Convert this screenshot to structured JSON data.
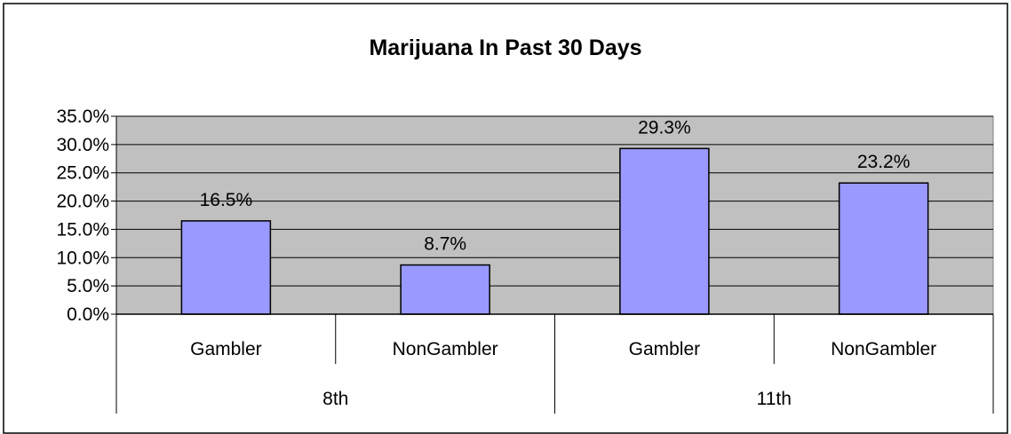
{
  "chart_data": {
    "type": "bar",
    "title": "Marijuana In Past 30 Days",
    "xlabel": "",
    "ylabel": "",
    "ylim": [
      0,
      35
    ],
    "y_ticks": [
      "0.0%",
      "5.0%",
      "10.0%",
      "15.0%",
      "20.0%",
      "25.0%",
      "30.0%",
      "35.0%"
    ],
    "y_tick_values": [
      0,
      5,
      10,
      15,
      20,
      25,
      30,
      35
    ],
    "grid": true,
    "legend": "none",
    "categories": [
      "Gambler",
      "NonGambler",
      "Gambler",
      "NonGambler"
    ],
    "groups": [
      {
        "label": "8th",
        "categories": [
          "Gambler",
          "NonGambler"
        ]
      },
      {
        "label": "11th",
        "categories": [
          "Gambler",
          "NonGambler"
        ]
      }
    ],
    "values": [
      16.5,
      8.7,
      29.3,
      23.2
    ],
    "data_labels": [
      "16.5%",
      "8.7%",
      "29.3%",
      "23.2%"
    ],
    "colors": {
      "bar_fill": "#9999ff",
      "plot_background": "#c0c0c0",
      "gridline": "#000000"
    }
  }
}
